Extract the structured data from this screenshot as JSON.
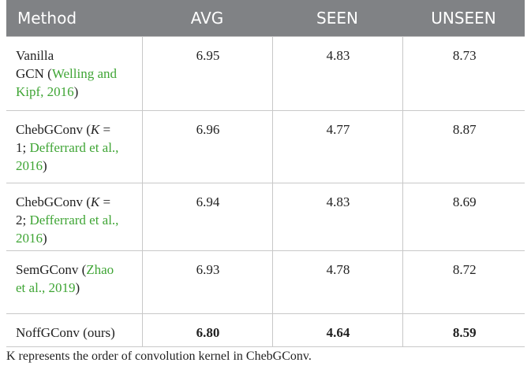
{
  "table": {
    "header": [
      "Method",
      "AVG",
      "SEEN",
      "UNSEEN"
    ],
    "rows": [
      {
        "method": [
          [
            {
              "text": "Vanilla"
            }
          ],
          [
            {
              "text": "GCN ("
            },
            {
              "text": "Welling and",
              "style": "cite"
            }
          ],
          [
            {
              "text": "Kipf, 2016",
              "style": "cite"
            },
            {
              "text": ")"
            }
          ]
        ],
        "values": [
          "6.95",
          "4.83",
          "8.73"
        ]
      },
      {
        "method": [
          [
            {
              "text": "ChebGConv ("
            },
            {
              "text": "K",
              "style": "italic"
            },
            {
              "text": " ="
            }
          ],
          [
            {
              "text": "1; "
            },
            {
              "text": "Defferrard et al.,",
              "style": "cite"
            }
          ],
          [
            {
              "text": "2016",
              "style": "cite"
            },
            {
              "text": ")"
            }
          ]
        ],
        "values": [
          "6.96",
          "4.77",
          "8.87"
        ]
      },
      {
        "method": [
          [
            {
              "text": "ChebGConv ("
            },
            {
              "text": "K",
              "style": "italic"
            },
            {
              "text": " ="
            }
          ],
          [
            {
              "text": "2; "
            },
            {
              "text": "Defferrard et al.,",
              "style": "cite"
            }
          ],
          [
            {
              "text": "2016",
              "style": "cite"
            },
            {
              "text": ")"
            }
          ]
        ],
        "values": [
          "6.94",
          "4.83",
          "8.69"
        ]
      },
      {
        "method": [
          [
            {
              "text": "SemGConv ("
            },
            {
              "text": "Zhao",
              "style": "cite"
            }
          ],
          [
            {
              "text": "et al., 2019",
              "style": "cite"
            },
            {
              "text": ")"
            }
          ]
        ],
        "values": [
          "6.93",
          "4.78",
          "8.72"
        ]
      },
      {
        "method": [
          [
            {
              "text": "NoffGConv (ours)"
            }
          ]
        ],
        "values": [
          "6.80",
          "4.64",
          "8.59"
        ],
        "bold": true
      }
    ],
    "footnote": "K represents the order of convolution kernel in ChebGConv."
  }
}
